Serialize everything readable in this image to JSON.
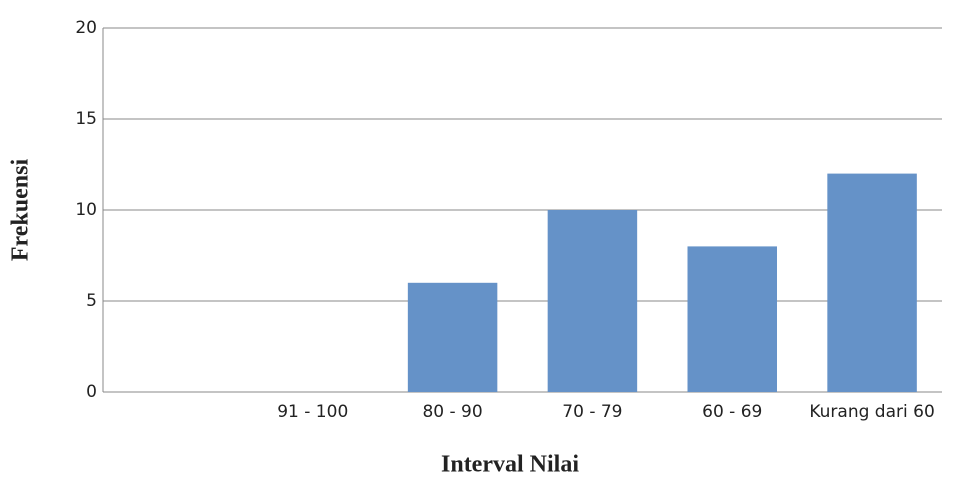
{
  "chart_data": {
    "type": "bar",
    "x_label": "Interval Nilai",
    "y_label": "Frekuensi",
    "categories": [
      null,
      "91 - 100",
      "80 - 90",
      "70 - 79",
      "60 - 69",
      "Kurang dari 60"
    ],
    "values": [
      0,
      0,
      6,
      10,
      8,
      12
    ],
    "color": "#6592c8",
    "ylim": [
      0,
      20
    ],
    "yticks": [
      0,
      5,
      10,
      15,
      20
    ],
    "grid": true
  }
}
